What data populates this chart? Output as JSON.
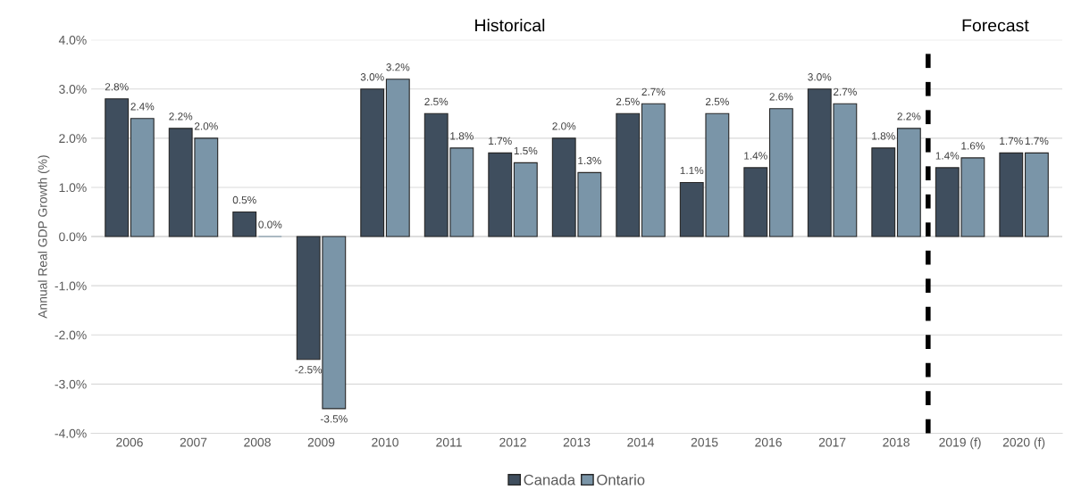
{
  "chart_data": {
    "type": "bar",
    "ylabel": "Annual Real GDP Growth (%)",
    "categories": [
      "2006",
      "2007",
      "2008",
      "2009",
      "2010",
      "2011",
      "2012",
      "2013",
      "2014",
      "2015",
      "2016",
      "2017",
      "2018",
      "2019 (f)",
      "2020 (f)"
    ],
    "series": [
      {
        "name": "Canada",
        "color": "#3f4e5e",
        "values": [
          2.8,
          2.2,
          0.5,
          -2.5,
          3.0,
          2.5,
          1.7,
          2.0,
          2.5,
          1.1,
          1.4,
          3.0,
          1.8,
          1.4,
          1.7
        ],
        "value_labels": [
          "2.8%",
          "2.2%",
          "0.5%",
          "-2.5%",
          "3.0%",
          "2.5%",
          "1.7%",
          "2.0%",
          "2.5%",
          "1.1%",
          "1.4%",
          "3.0%",
          "1.8%",
          "1.4%",
          "1.7%"
        ]
      },
      {
        "name": "Ontario",
        "color": "#7a95a8",
        "values": [
          2.4,
          2.0,
          0.0,
          -3.5,
          3.2,
          1.8,
          1.5,
          1.3,
          2.7,
          2.5,
          2.6,
          2.7,
          2.2,
          1.6,
          1.7
        ],
        "value_labels": [
          "2.4%",
          "2.0%",
          "0.0%",
          "-3.5%",
          "3.2%",
          "1.8%",
          "1.5%",
          "1.3%",
          "2.7%",
          "2.5%",
          "2.6%",
          "2.7%",
          "2.2%",
          "1.6%",
          "1.7%"
        ]
      }
    ],
    "ylim": [
      -4.0,
      4.0
    ],
    "yticks": [
      {
        "value": -4.0,
        "label": "-4.0%"
      },
      {
        "value": -3.0,
        "label": "-3.0%"
      },
      {
        "value": -2.0,
        "label": "-2.0%"
      },
      {
        "value": -1.0,
        "label": "-1.0%"
      },
      {
        "value": 0.0,
        "label": "0.0%"
      },
      {
        "value": 1.0,
        "label": "1.0%"
      },
      {
        "value": 2.0,
        "label": "2.0%"
      },
      {
        "value": 3.0,
        "label": "3.0%"
      },
      {
        "value": 4.0,
        "label": "4.0%"
      }
    ],
    "annotations": [
      "Historical",
      "Forecast"
    ],
    "grid": "y",
    "legend": "bottom"
  }
}
